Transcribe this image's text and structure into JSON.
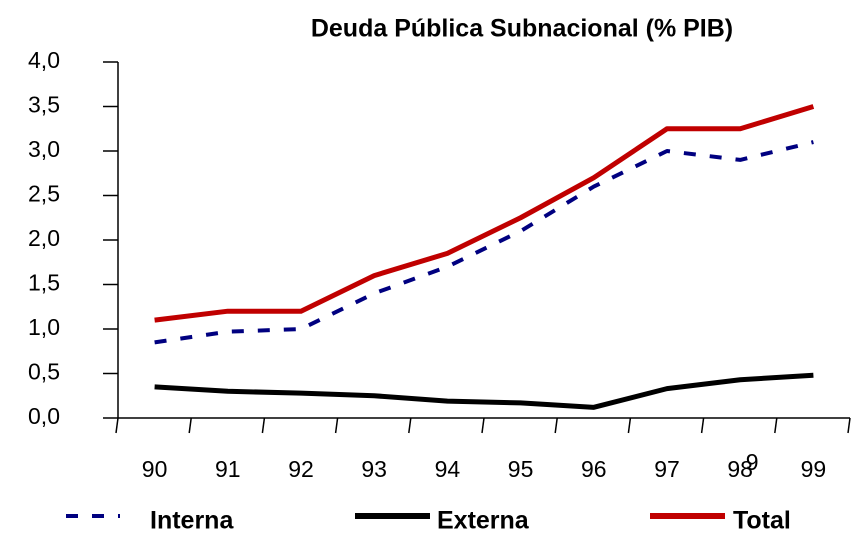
{
  "chart_data": {
    "type": "line",
    "title": "Deuda Pública Subnacional (% PIB)",
    "annotation": "9",
    "categories": [
      "90",
      "91",
      "92",
      "93",
      "94",
      "95",
      "96",
      "97",
      "98",
      "99"
    ],
    "series": [
      {
        "name": "Interna",
        "color": "#000080",
        "dashed": true,
        "values": [
          0.85,
          0.97,
          1.0,
          1.4,
          1.7,
          2.1,
          2.6,
          3.0,
          2.9,
          3.1
        ]
      },
      {
        "name": "Externa",
        "color": "#000000",
        "dashed": false,
        "values": [
          0.35,
          0.3,
          0.28,
          0.25,
          0.19,
          0.17,
          0.12,
          0.33,
          0.43,
          0.48
        ]
      },
      {
        "name": "Total",
        "color": "#c00000",
        "dashed": false,
        "values": [
          1.1,
          1.2,
          1.2,
          1.6,
          1.85,
          2.25,
          2.7,
          3.25,
          3.25,
          3.5
        ]
      }
    ],
    "ylim": [
      0,
      4
    ],
    "yticks": [
      {
        "value": 0,
        "label": "0,0"
      },
      {
        "value": 0.5,
        "label": "0,5"
      },
      {
        "value": 1,
        "label": "1,0"
      },
      {
        "value": 1.5,
        "label": "1,5"
      },
      {
        "value": 2,
        "label": "2,0"
      },
      {
        "value": 2.5,
        "label": "2,5"
      },
      {
        "value": 3,
        "label": "3,0"
      },
      {
        "value": 3.5,
        "label": "3,5"
      },
      {
        "value": 4,
        "label": "4,0"
      }
    ],
    "legend": "bottom"
  }
}
